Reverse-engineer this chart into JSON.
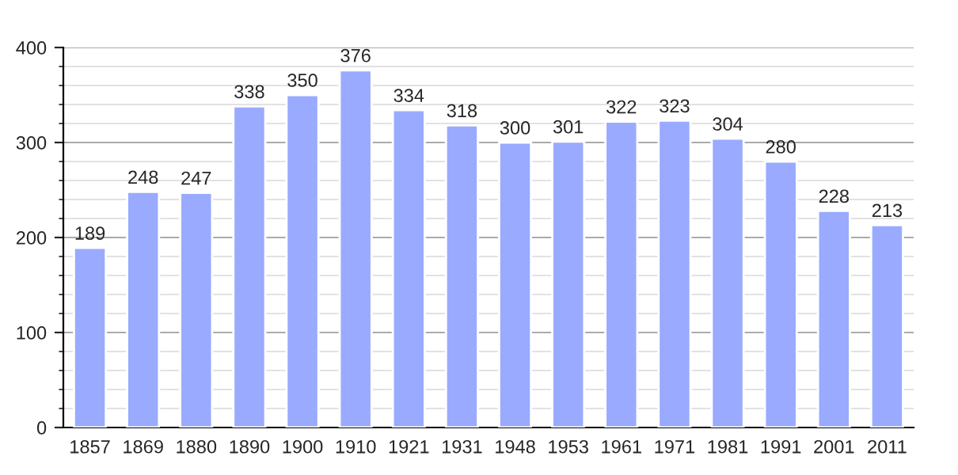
{
  "chart_data": {
    "type": "bar",
    "categories": [
      "1857",
      "1869",
      "1880",
      "1890",
      "1900",
      "1910",
      "1921",
      "1931",
      "1948",
      "1953",
      "1961",
      "1971",
      "1981",
      "1991",
      "2001",
      "2011"
    ],
    "values": [
      189,
      248,
      247,
      338,
      350,
      376,
      334,
      318,
      300,
      301,
      322,
      323,
      304,
      280,
      228,
      213
    ],
    "color": "#99aaff",
    "ylim": [
      0,
      400
    ],
    "yticks": [
      0,
      100,
      200,
      300,
      400
    ],
    "grid": "y",
    "data_labels": true
  }
}
